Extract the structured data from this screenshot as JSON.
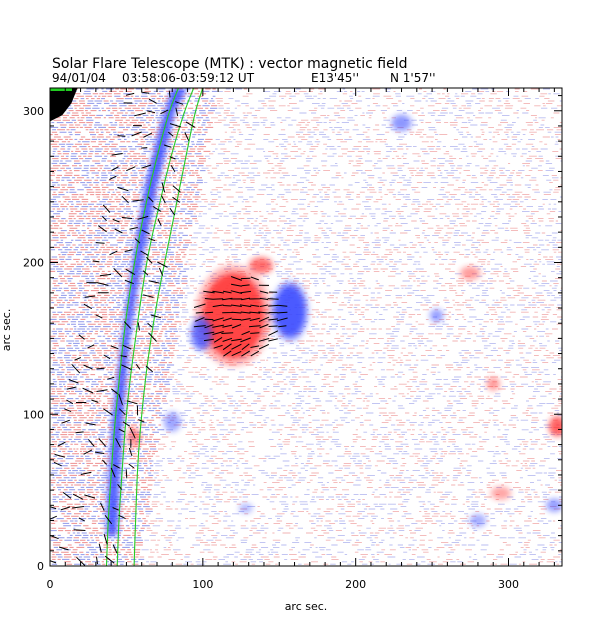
{
  "page": {
    "title": "Solar Flare Telescope (MTK) : vector magnetic field",
    "subtitle": {
      "date": "94/01/04",
      "time_range": "03:58:06-03:59:12 UT",
      "longitude": "E13'45''",
      "latitude": "N 1'57''"
    }
  },
  "chart_data": {
    "type": "heatmap",
    "title": "Solar Flare Telescope (MTK) : vector magnetic field",
    "xlabel": "arc sec.",
    "ylabel": "arc sec.",
    "xlim": [
      0,
      335
    ],
    "ylim": [
      0,
      315
    ],
    "x_ticks": [
      0,
      100,
      200,
      300
    ],
    "y_ticks": [
      0,
      100,
      200,
      300
    ],
    "x_tick_labels": [
      "0",
      "100",
      "200",
      "300"
    ],
    "y_tick_labels": [
      "0",
      "100",
      "200",
      "300"
    ],
    "color_scale": {
      "positive_polarity": "#ff3030",
      "negative_polarity": "#3848ff",
      "background": "#ffffff",
      "contour": "#22cc22",
      "vector": "#000000",
      "off_disk": "#000000"
    },
    "contours": [
      {
        "name": "limb-contour-inner",
        "points": [
          [
            37,
            0
          ],
          [
            38,
            30
          ],
          [
            40,
            60
          ],
          [
            42,
            90
          ],
          [
            45,
            120
          ],
          [
            48,
            150
          ],
          [
            52,
            180
          ],
          [
            57,
            210
          ],
          [
            63,
            240
          ],
          [
            70,
            270
          ],
          [
            78,
            300
          ],
          [
            84,
            315
          ]
        ]
      },
      {
        "name": "limb-contour-middle",
        "points": [
          [
            44,
            0
          ],
          [
            45,
            30
          ],
          [
            47,
            60
          ],
          [
            49,
            90
          ],
          [
            52,
            120
          ],
          [
            56,
            150
          ],
          [
            60,
            180
          ],
          [
            65,
            210
          ],
          [
            72,
            240
          ],
          [
            79,
            270
          ],
          [
            88,
            300
          ],
          [
            94,
            315
          ]
        ]
      },
      {
        "name": "limb-contour-outer",
        "points": [
          [
            55,
            0
          ],
          [
            56,
            30
          ],
          [
            57,
            60
          ],
          [
            59,
            90
          ],
          [
            62,
            120
          ],
          [
            66,
            150
          ],
          [
            71,
            180
          ],
          [
            77,
            210
          ],
          [
            83,
            240
          ],
          [
            89,
            270
          ],
          [
            95,
            300
          ],
          [
            100,
            315
          ]
        ]
      }
    ],
    "blobs": [
      {
        "name": "limb-blue-band",
        "polarity": "negative",
        "points": [
          [
            37,
            20
          ],
          [
            44,
            20
          ],
          [
            47,
            90
          ],
          [
            52,
            150
          ],
          [
            60,
            200
          ],
          [
            70,
            250
          ],
          [
            82,
            300
          ],
          [
            90,
            315
          ],
          [
            80,
            315
          ],
          [
            72,
            290
          ],
          [
            62,
            250
          ],
          [
            54,
            200
          ],
          [
            47,
            150
          ],
          [
            41,
            100
          ],
          [
            37,
            40
          ]
        ]
      },
      {
        "name": "sunspot-positive-main",
        "polarity": "positive",
        "cx": 120,
        "cy": 165,
        "rx": 20,
        "ry": 28,
        "strength": 1.0
      },
      {
        "name": "sunspot-positive-upper",
        "polarity": "positive",
        "cx": 138,
        "cy": 198,
        "rx": 7,
        "ry": 5,
        "strength": 0.7
      },
      {
        "name": "sunspot-negative-east",
        "polarity": "negative",
        "cx": 157,
        "cy": 168,
        "rx": 10,
        "ry": 17,
        "strength": 1.0
      },
      {
        "name": "sunspot-negative-west",
        "polarity": "negative",
        "cx": 99,
        "cy": 153,
        "rx": 6,
        "ry": 10,
        "strength": 0.8
      },
      {
        "name": "network-negative-1",
        "polarity": "negative",
        "cx": 230,
        "cy": 292,
        "rx": 6,
        "ry": 5,
        "strength": 0.55
      },
      {
        "name": "network-negative-2",
        "polarity": "negative",
        "cx": 253,
        "cy": 165,
        "rx": 4,
        "ry": 4,
        "strength": 0.5
      },
      {
        "name": "network-negative-3",
        "polarity": "negative",
        "cx": 80,
        "cy": 95,
        "rx": 5,
        "ry": 6,
        "strength": 0.45
      },
      {
        "name": "network-negative-4",
        "polarity": "negative",
        "cx": 330,
        "cy": 40,
        "rx": 5,
        "ry": 4,
        "strength": 0.5
      },
      {
        "name": "network-negative-5",
        "polarity": "negative",
        "cx": 280,
        "cy": 30,
        "rx": 5,
        "ry": 4,
        "strength": 0.4
      },
      {
        "name": "network-negative-6",
        "polarity": "negative",
        "cx": 128,
        "cy": 38,
        "rx": 4,
        "ry": 3,
        "strength": 0.35
      },
      {
        "name": "network-positive-1",
        "polarity": "positive",
        "cx": 290,
        "cy": 120,
        "rx": 4,
        "ry": 4,
        "strength": 0.45
      },
      {
        "name": "network-positive-2",
        "polarity": "positive",
        "cx": 275,
        "cy": 193,
        "rx": 6,
        "ry": 4,
        "strength": 0.45
      },
      {
        "name": "network-positive-3",
        "polarity": "positive",
        "cx": 332,
        "cy": 92,
        "rx": 5,
        "ry": 6,
        "strength": 0.8
      },
      {
        "name": "network-positive-4",
        "polarity": "positive",
        "cx": 295,
        "cy": 48,
        "rx": 6,
        "ry": 4,
        "strength": 0.4
      },
      {
        "name": "network-positive-5",
        "polarity": "positive",
        "cx": 55,
        "cy": 85,
        "rx": 4,
        "ry": 6,
        "strength": 0.5
      }
    ],
    "off_disk_region": [
      [
        0,
        315
      ],
      [
        18,
        315
      ],
      [
        14,
        305
      ],
      [
        8,
        297
      ],
      [
        0,
        293
      ]
    ],
    "vectors": {
      "limb_band_x_range": [
        0,
        100
      ],
      "sunspot_center": [
        125,
        165
      ],
      "description": "transverse field orientation segments overlaid on limb band and sunspot group"
    }
  }
}
